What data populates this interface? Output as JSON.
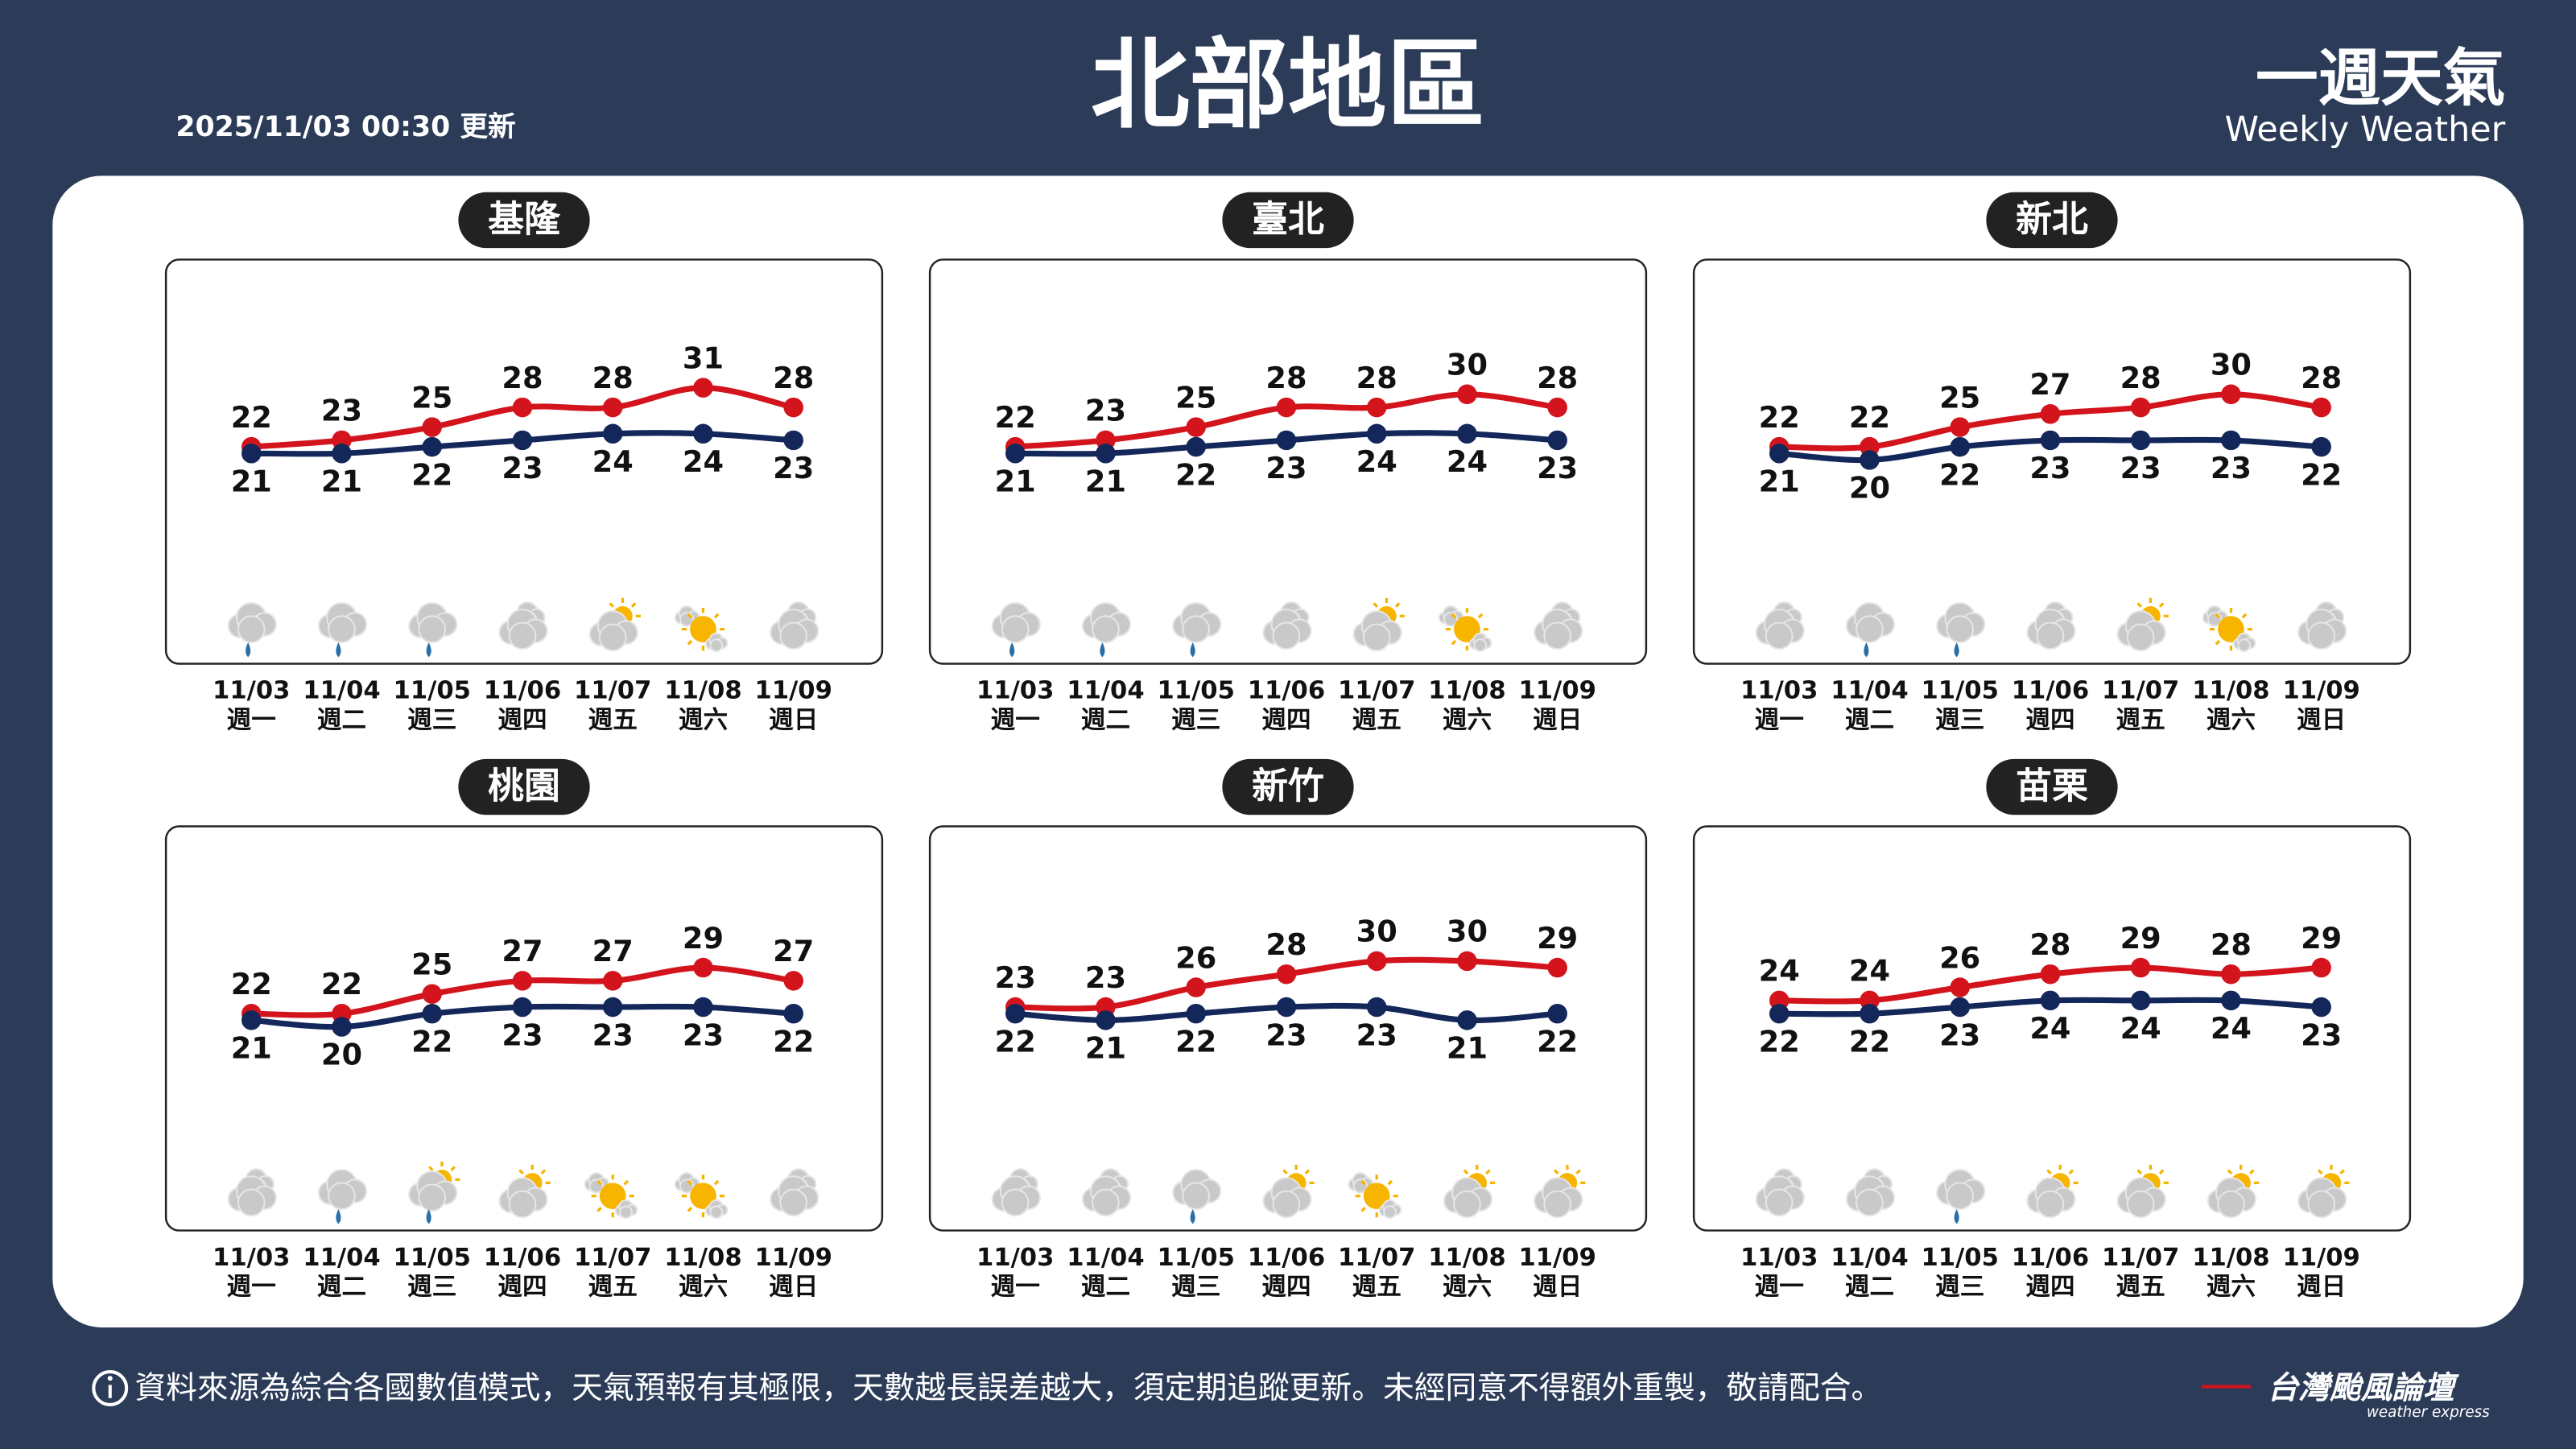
{
  "header": {
    "title": "北部地區",
    "updated": "2025/11/03 00:30 更新",
    "brand": "一週天氣",
    "brand_sub": "Weekly Weather"
  },
  "footer": {
    "note": "資料來源為綜合各國數值模式，天氣預報有其極限，天數越長誤差越大，須定期追蹤更新。未經同意不得額外重製，敬請配合。",
    "logo": "台灣颱風論壇",
    "logo_sub": "weather express"
  },
  "chart_data": [
    {
      "type": "line",
      "title": "基隆",
      "categories": [
        "11/03",
        "11/04",
        "11/05",
        "11/06",
        "11/07",
        "11/08",
        "11/09"
      ],
      "weekdays": [
        "週一",
        "週二",
        "週三",
        "週四",
        "週五",
        "週六",
        "週日"
      ],
      "ylim": [
        0,
        50
      ],
      "series": [
        {
          "color": "#d4141c",
          "values": [
            22,
            23,
            25,
            28,
            28,
            31,
            28
          ]
        },
        {
          "color": "#14275a",
          "values": [
            21,
            21,
            22,
            23,
            24,
            24,
            23
          ]
        }
      ],
      "icons": [
        "rain",
        "rain",
        "rain",
        "cloudy",
        "partly",
        "sunny",
        "cloudy"
      ]
    },
    {
      "type": "line",
      "title": "臺北",
      "categories": [
        "11/03",
        "11/04",
        "11/05",
        "11/06",
        "11/07",
        "11/08",
        "11/09"
      ],
      "weekdays": [
        "週一",
        "週二",
        "週三",
        "週四",
        "週五",
        "週六",
        "週日"
      ],
      "ylim": [
        0,
        50
      ],
      "series": [
        {
          "color": "#d4141c",
          "values": [
            22,
            23,
            25,
            28,
            28,
            30,
            28
          ]
        },
        {
          "color": "#14275a",
          "values": [
            21,
            21,
            22,
            23,
            24,
            24,
            23
          ]
        }
      ],
      "icons": [
        "rain",
        "rain",
        "rain",
        "cloudy",
        "partly",
        "sunny",
        "cloudy"
      ]
    },
    {
      "type": "line",
      "title": "新北",
      "categories": [
        "11/03",
        "11/04",
        "11/05",
        "11/06",
        "11/07",
        "11/08",
        "11/09"
      ],
      "weekdays": [
        "週一",
        "週二",
        "週三",
        "週四",
        "週五",
        "週六",
        "週日"
      ],
      "ylim": [
        0,
        50
      ],
      "series": [
        {
          "color": "#d4141c",
          "values": [
            22,
            22,
            25,
            27,
            28,
            30,
            28
          ]
        },
        {
          "color": "#14275a",
          "values": [
            21,
            20,
            22,
            23,
            23,
            23,
            22
          ]
        }
      ],
      "icons": [
        "cloudy",
        "rain",
        "rain",
        "cloudy",
        "partly",
        "sunny",
        "cloudy"
      ]
    },
    {
      "type": "line",
      "title": "桃園",
      "categories": [
        "11/03",
        "11/04",
        "11/05",
        "11/06",
        "11/07",
        "11/08",
        "11/09"
      ],
      "weekdays": [
        "週一",
        "週二",
        "週三",
        "週四",
        "週五",
        "週六",
        "週日"
      ],
      "ylim": [
        0,
        50
      ],
      "series": [
        {
          "color": "#d4141c",
          "values": [
            22,
            22,
            25,
            27,
            27,
            29,
            27
          ]
        },
        {
          "color": "#14275a",
          "values": [
            21,
            20,
            22,
            23,
            23,
            23,
            22
          ]
        }
      ],
      "icons": [
        "cloudy",
        "rain",
        "partly-rain",
        "partly",
        "sunny",
        "sunny",
        "cloudy"
      ]
    },
    {
      "type": "line",
      "title": "新竹",
      "categories": [
        "11/03",
        "11/04",
        "11/05",
        "11/06",
        "11/07",
        "11/08",
        "11/09"
      ],
      "weekdays": [
        "週一",
        "週二",
        "週三",
        "週四",
        "週五",
        "週六",
        "週日"
      ],
      "ylim": [
        0,
        50
      ],
      "series": [
        {
          "color": "#d4141c",
          "values": [
            23,
            23,
            26,
            28,
            30,
            30,
            29
          ]
        },
        {
          "color": "#14275a",
          "values": [
            22,
            21,
            22,
            23,
            23,
            21,
            22
          ]
        }
      ],
      "icons": [
        "cloudy",
        "cloudy",
        "rain",
        "partly",
        "sunny",
        "partly",
        "partly"
      ]
    },
    {
      "type": "line",
      "title": "苗栗",
      "categories": [
        "11/03",
        "11/04",
        "11/05",
        "11/06",
        "11/07",
        "11/08",
        "11/09"
      ],
      "weekdays": [
        "週一",
        "週二",
        "週三",
        "週四",
        "週五",
        "週六",
        "週日"
      ],
      "ylim": [
        0,
        50
      ],
      "series": [
        {
          "color": "#d4141c",
          "values": [
            24,
            24,
            26,
            28,
            29,
            28,
            29
          ]
        },
        {
          "color": "#14275a",
          "values": [
            22,
            22,
            23,
            24,
            24,
            24,
            23
          ]
        }
      ],
      "icons": [
        "cloudy",
        "cloudy",
        "rain",
        "partly",
        "partly",
        "partly",
        "partly"
      ]
    }
  ]
}
